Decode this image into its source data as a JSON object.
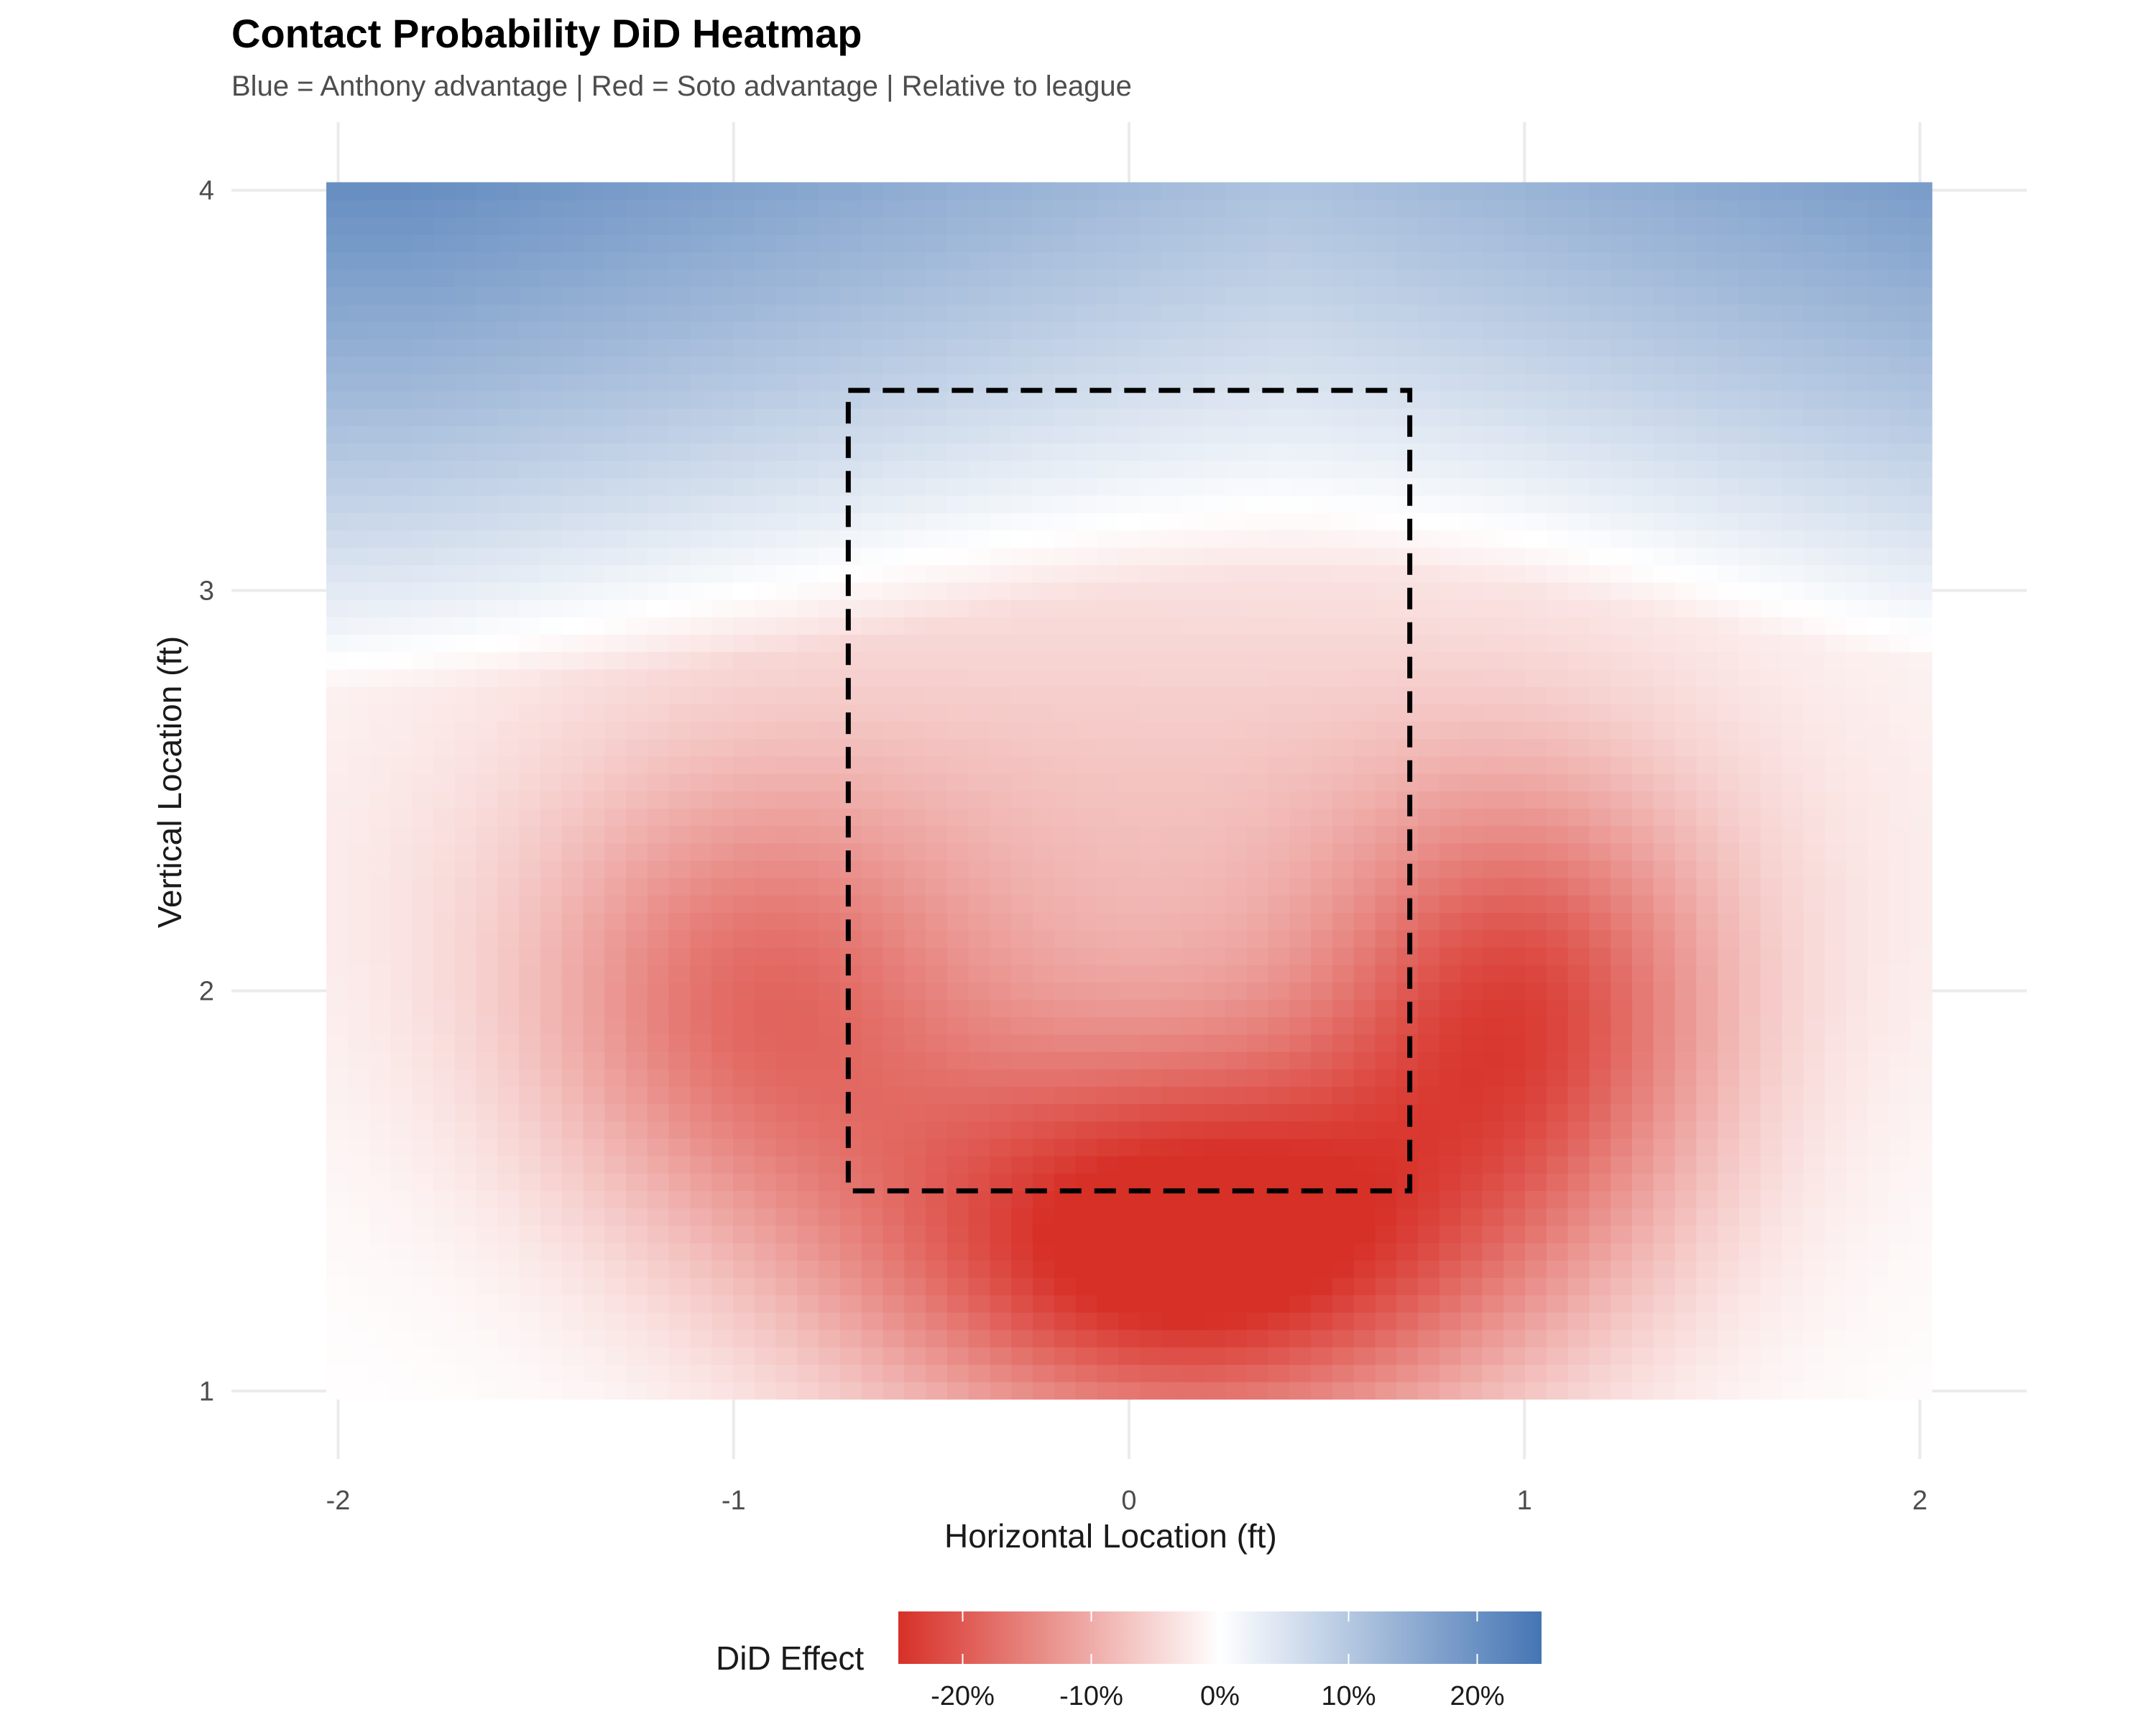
{
  "chart_data": {
    "type": "heatmap",
    "title": "Contact Probability DiD Heatmap",
    "subtitle": "Blue = Anthony advantage | Red = Soto advantage | Relative to league",
    "xlabel": "Horizontal Location (ft)",
    "ylabel": "Vertical Location (ft)",
    "xlim": [
      -2.27,
      2.27
    ],
    "ylim": [
      0.83,
      4.17
    ],
    "heat_extent": {
      "x": [
        -2.03,
        2.03
      ],
      "y": [
        0.98,
        4.02
      ]
    },
    "x_ticks": [
      -2,
      -1,
      0,
      1,
      2
    ],
    "x_tick_labels": [
      "-2",
      "-1",
      "0",
      "1",
      "2"
    ],
    "y_ticks": [
      1,
      2,
      3,
      4
    ],
    "y_tick_labels": [
      "1",
      "2",
      "3",
      "4"
    ],
    "grid": true,
    "strike_zone": {
      "x": [
        -0.71,
        0.71
      ],
      "y": [
        1.5,
        3.5
      ],
      "style": "dashed"
    },
    "legend": {
      "title": "DiD Effect",
      "position": "bottom",
      "range": [
        -0.25,
        0.25
      ],
      "breaks": [
        -0.2,
        -0.1,
        0,
        0.1,
        0.2
      ],
      "labels": [
        "-20%",
        "-10%",
        "0%",
        "10%",
        "20%"
      ]
    },
    "colors": {
      "low": "#d73027",
      "mid": "#ffffff",
      "high": "#4575b4"
    },
    "surface_samples": [
      {
        "x": 0.15,
        "y": 1.35,
        "value": -0.25
      },
      {
        "x": -0.5,
        "y": 1.6,
        "value": -0.18
      },
      {
        "x": 1.0,
        "y": 1.9,
        "value": -0.17
      },
      {
        "x": -1.0,
        "y": 1.9,
        "value": -0.15
      },
      {
        "x": 0.0,
        "y": 2.5,
        "value": -0.05
      },
      {
        "x": 0.5,
        "y": 2.95,
        "value": 0.0
      },
      {
        "x": 0.0,
        "y": 3.5,
        "value": 0.04
      },
      {
        "x": -2.0,
        "y": 4.0,
        "value": 0.2
      },
      {
        "x": 2.0,
        "y": 4.0,
        "value": 0.17
      },
      {
        "x": -2.0,
        "y": 1.0,
        "value": 0.0
      },
      {
        "x": 2.0,
        "y": 1.0,
        "value": 0.0
      }
    ]
  }
}
